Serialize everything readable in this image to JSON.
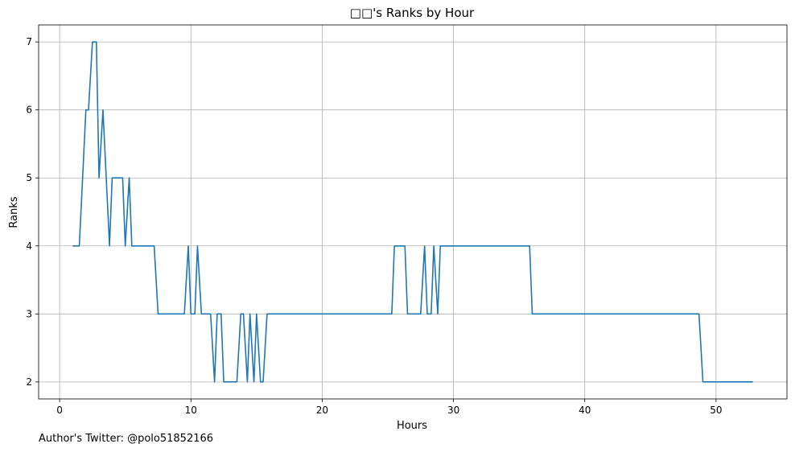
{
  "chart_data": {
    "type": "line",
    "title": "□□'s Ranks by Hour",
    "xlabel": "Hours",
    "ylabel": "Ranks",
    "xlim": [
      -1.6,
      55.4
    ],
    "ylim": [
      1.75,
      7.25
    ],
    "xticks": [
      0,
      10,
      20,
      30,
      40,
      50
    ],
    "yticks": [
      2,
      3,
      4,
      5,
      6,
      7
    ],
    "grid": true,
    "line_color": "#1f77b4",
    "series": [
      {
        "x": [
          1.0,
          1.5,
          2.0,
          2.2,
          2.5,
          2.8,
          3.0,
          3.3,
          3.8,
          4.0,
          4.5,
          4.8,
          5.0,
          5.3,
          5.5,
          7.2,
          7.5,
          9.5,
          9.8,
          10.0,
          10.3,
          10.5,
          10.8,
          11.5,
          11.8,
          12.0,
          12.3,
          12.5,
          13.5,
          13.8,
          14.0,
          14.3,
          14.5,
          14.8,
          15.0,
          15.3,
          15.5,
          15.8,
          25.3,
          25.5,
          26.3,
          26.5,
          27.5,
          27.8,
          28.0,
          28.3,
          28.5,
          28.8,
          29.0,
          35.8,
          36.0,
          48.7,
          49.0,
          52.8
        ],
        "y": [
          4,
          4,
          6,
          6,
          7,
          7,
          5,
          6,
          4,
          5,
          5,
          5,
          4,
          5,
          4,
          4,
          3,
          3,
          4,
          3,
          3,
          4,
          3,
          3,
          2,
          3,
          3,
          2,
          2,
          3,
          3,
          2,
          3,
          2,
          3,
          2,
          2,
          3,
          3,
          4,
          4,
          3,
          3,
          4,
          3,
          3,
          4,
          3,
          4,
          4,
          3,
          3,
          2,
          2
        ]
      }
    ]
  },
  "footer": {
    "credit": "Author's Twitter: @polo51852166"
  }
}
